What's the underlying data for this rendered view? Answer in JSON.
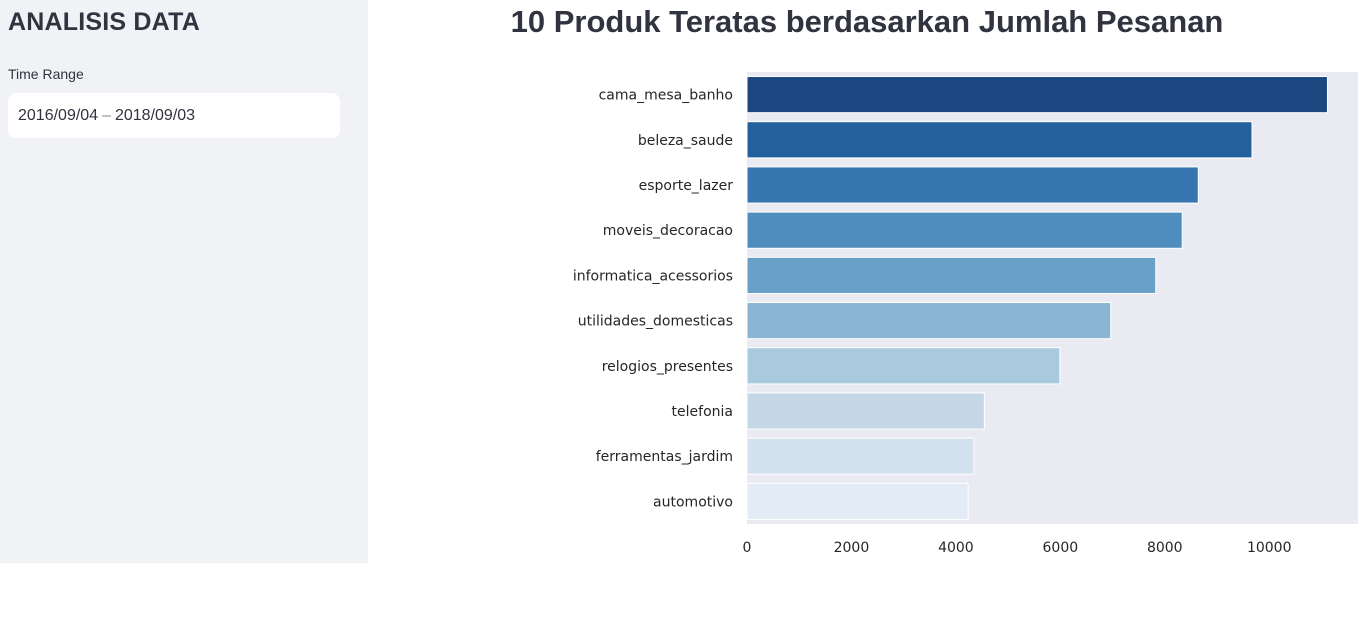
{
  "sidebar": {
    "title": "ANALISIS DATA",
    "time_range_label": "Time Range",
    "date_start": "2016/09/04",
    "date_sep": "–",
    "date_end": "2018/09/03"
  },
  "chart_data": {
    "type": "bar",
    "orientation": "horizontal",
    "title": "10 Produk Teratas berdasarkan Jumlah Pesanan",
    "xlabel": "",
    "ylabel": "",
    "categories": [
      "cama_mesa_banho",
      "beleza_saude",
      "esporte_lazer",
      "moveis_decoracao",
      "informatica_acessorios",
      "utilidades_domesticas",
      "relogios_presentes",
      "telefonia",
      "ferramentas_jardim",
      "automotivo"
    ],
    "values": [
      11115,
      9670,
      8641,
      8334,
      7827,
      6964,
      5991,
      4545,
      4347,
      4235
    ],
    "xlim": [
      0,
      11700
    ],
    "xticks": [
      0,
      2000,
      4000,
      6000,
      8000,
      10000
    ],
    "colors": [
      "#1b467f",
      "#24609b",
      "#3776ae",
      "#4f8dbe",
      "#68a0c8",
      "#8ab6d3",
      "#a9c9de",
      "#c4d7e7",
      "#d4e1ee",
      "#e3ecf6"
    ],
    "background": "#eaeaf2",
    "grid": false
  }
}
